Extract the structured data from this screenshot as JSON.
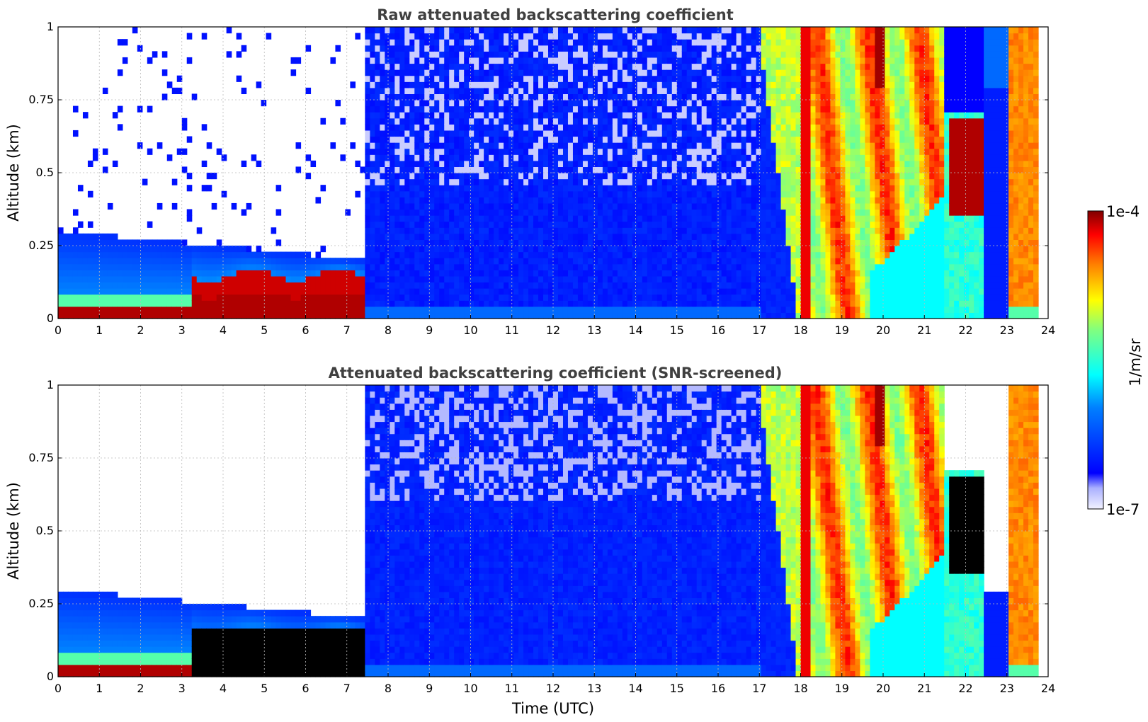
{
  "colorbar": {
    "label": "1/m/sr",
    "min_label": "1e-7",
    "max_label": "1e-4",
    "scale": "log"
  },
  "chart_data": [
    {
      "type": "heatmap",
      "title": "Raw attenuated backscattering coefficient",
      "xlabel": "",
      "ylabel": "Altitude (km)",
      "xlim": [
        0,
        24
      ],
      "ylim": [
        0,
        1
      ],
      "xticks": [
        "0",
        "1",
        "2",
        "3",
        "4",
        "5",
        "6",
        "7",
        "8",
        "9",
        "10",
        "11",
        "12",
        "13",
        "14",
        "15",
        "16",
        "17",
        "18",
        "19",
        "20",
        "21",
        "22",
        "23",
        "24"
      ],
      "yticks": [
        "0",
        "0.25",
        "0.5",
        "0.75",
        "1"
      ],
      "grid": true,
      "colormap": "jet",
      "screened": false
    },
    {
      "type": "heatmap",
      "title": "Attenuated backscattering coefficient (SNR-screened)",
      "xlabel": "Time (UTC)",
      "ylabel": "Altitude (km)",
      "xlim": [
        0,
        24
      ],
      "ylim": [
        0,
        1
      ],
      "xticks": [
        "0",
        "1",
        "2",
        "3",
        "4",
        "5",
        "6",
        "7",
        "8",
        "9",
        "10",
        "11",
        "12",
        "13",
        "14",
        "15",
        "16",
        "17",
        "18",
        "19",
        "20",
        "21",
        "22",
        "23",
        "24"
      ],
      "yticks": [
        "0",
        "0.25",
        "0.5",
        "0.75",
        "1"
      ],
      "grid": true,
      "colormap": "jet",
      "screened": true
    }
  ]
}
